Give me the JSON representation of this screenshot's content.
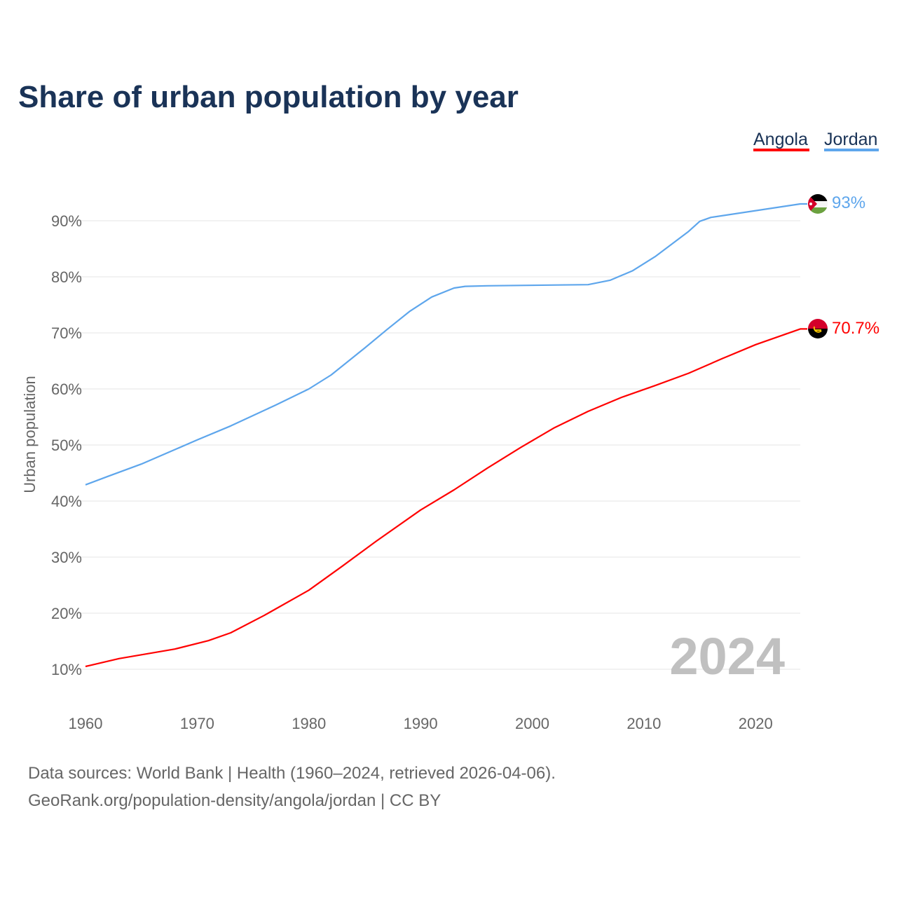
{
  "chart_data": {
    "type": "line",
    "title": "Share of urban population by year",
    "xlabel": "",
    "ylabel": "Urban population",
    "xlim": [
      1960,
      2024
    ],
    "ylim": [
      10,
      90
    ],
    "x_ticks": [
      "1960",
      "1970",
      "1980",
      "1990",
      "2000",
      "2010",
      "2020"
    ],
    "y_ticks": [
      "10%",
      "20%",
      "30%",
      "40%",
      "50%",
      "60%",
      "70%",
      "80%",
      "90%"
    ],
    "grid": true,
    "legend_position": "top-right",
    "year_watermark": "2024",
    "series": [
      {
        "name": "Angola",
        "color": "#ff0000",
        "end_label": "70.7%",
        "flag": "angola-flag",
        "points": [
          [
            1960,
            10.5
          ],
          [
            1963,
            11.9
          ],
          [
            1968,
            13.6
          ],
          [
            1971,
            15.1
          ],
          [
            1973,
            16.5
          ],
          [
            1976,
            19.6
          ],
          [
            1980,
            24.1
          ],
          [
            1983,
            28.4
          ],
          [
            1986,
            32.8
          ],
          [
            1990,
            38.4
          ],
          [
            1993,
            42.0
          ],
          [
            1996,
            45.9
          ],
          [
            1999,
            49.6
          ],
          [
            2002,
            53.1
          ],
          [
            2005,
            56.0
          ],
          [
            2008,
            58.5
          ],
          [
            2011,
            60.6
          ],
          [
            2014,
            62.8
          ],
          [
            2017,
            65.4
          ],
          [
            2020,
            67.9
          ],
          [
            2024,
            70.7
          ]
        ]
      },
      {
        "name": "Jordan",
        "color": "#5ea6ec",
        "end_label": "93%",
        "flag": "jordan-flag",
        "points": [
          [
            1960,
            42.9
          ],
          [
            1962,
            44.4
          ],
          [
            1965,
            46.6
          ],
          [
            1970,
            50.9
          ],
          [
            1973,
            53.4
          ],
          [
            1977,
            57.1
          ],
          [
            1980,
            60.0
          ],
          [
            1982,
            62.5
          ],
          [
            1985,
            67.3
          ],
          [
            1987,
            70.6
          ],
          [
            1989,
            73.8
          ],
          [
            1991,
            76.4
          ],
          [
            1993,
            78.0
          ],
          [
            1994,
            78.3
          ],
          [
            1996,
            78.4
          ],
          [
            2005,
            78.6
          ],
          [
            2007,
            79.4
          ],
          [
            2009,
            81.1
          ],
          [
            2011,
            83.6
          ],
          [
            2014,
            88.1
          ],
          [
            2015,
            89.9
          ],
          [
            2016,
            90.6
          ],
          [
            2024,
            93.0
          ]
        ]
      }
    ]
  },
  "footer": {
    "line1": "Data sources: World Bank | Health (1960–2024, retrieved 2026-04-06).",
    "line2": "GeoRank.org/population-density/angola/jordan | CC BY"
  }
}
